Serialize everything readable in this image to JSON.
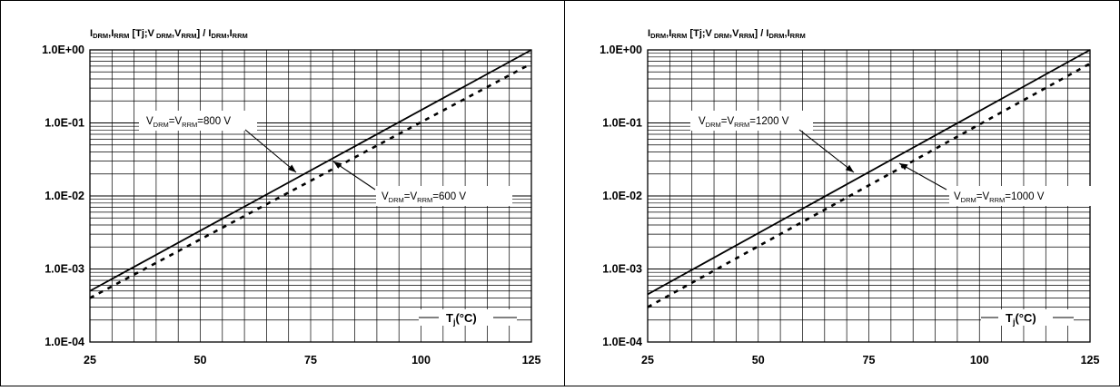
{
  "chart_data": [
    {
      "type": "line",
      "title": {
        "pre": "I",
        "s1": "DRM",
        "m1": ",I",
        "s2": "RRM",
        "m2": " [Tj;V",
        "s3": " DRM",
        "m3": ",V",
        "s4": "RRM",
        "m4": "] / I",
        "s5": "DRM",
        "m5": ",I",
        "s6": "RRM"
      },
      "xlabel": {
        "main": "T",
        "sub": "j",
        "rest": "(°C)"
      },
      "xlim": [
        25,
        125
      ],
      "ylim": [
        0.0001,
        1
      ],
      "yscale": "log",
      "grid": true,
      "xticks": [
        25,
        50,
        75,
        100,
        125
      ],
      "xtick_labels": [
        "25",
        "50",
        "75",
        "100",
        "125"
      ],
      "yticks": [
        0.0001,
        0.001,
        0.01,
        0.1,
        1
      ],
      "ytick_labels": [
        "1.0E-04",
        "1.0E-03",
        "1.0E-02",
        "1.0E-01",
        "1.0E+00"
      ],
      "series": [
        {
          "name": "VDRM=VRRM=800 V",
          "style": "solid",
          "x": [
            25,
            125
          ],
          "y": [
            0.0005,
            1
          ]
        },
        {
          "name": "VDRM=VRRM=600 V",
          "style": "dashed",
          "x": [
            25,
            125
          ],
          "y": [
            0.0004,
            0.65
          ]
        }
      ],
      "annotations": [
        {
          "p1": "V",
          "s1": "DRM",
          "p2": "=V",
          "s2": "RRM",
          "p3": "=800 V"
        },
        {
          "p1": "V",
          "s1": "DRM",
          "p2": "=V",
          "s2": "RRM",
          "p3": "=600 V"
        }
      ]
    },
    {
      "type": "line",
      "title": {
        "pre": "I",
        "s1": "DRM",
        "m1": ",I",
        "s2": "RRM",
        "m2": " [Tj;V",
        "s3": " DRM",
        "m3": ",V",
        "s4": "RRM",
        "m4": "] / I",
        "s5": "DRM",
        "m5": ",I",
        "s6": "RRM"
      },
      "xlabel": {
        "main": "T",
        "sub": "j",
        "rest": "(°C)"
      },
      "xlim": [
        25,
        125
      ],
      "ylim": [
        0.0001,
        1
      ],
      "yscale": "log",
      "grid": true,
      "xticks": [
        25,
        50,
        75,
        100,
        125
      ],
      "xtick_labels": [
        "25",
        "50",
        "75",
        "100",
        "125"
      ],
      "yticks": [
        0.0001,
        0.001,
        0.01,
        0.1,
        1
      ],
      "ytick_labels": [
        "1.0E-04",
        "1.0E-03",
        "1.0E-02",
        "1.0E-01",
        "1.0E+00"
      ],
      "series": [
        {
          "name": "VDRM=VRRM=1200 V",
          "style": "solid",
          "x": [
            25,
            125
          ],
          "y": [
            0.00045,
            1
          ]
        },
        {
          "name": "VDRM=VRRM=1000 V",
          "style": "dashed",
          "x": [
            25,
            125
          ],
          "y": [
            0.0003,
            0.65
          ]
        }
      ],
      "annotations": [
        {
          "p1": "V",
          "s1": "DRM",
          "p2": "=V",
          "s2": "RRM",
          "p3": "=1200 V"
        },
        {
          "p1": "V",
          "s1": "DRM",
          "p2": "=V",
          "s2": "RRM",
          "p3": "=1000 V"
        }
      ]
    }
  ]
}
